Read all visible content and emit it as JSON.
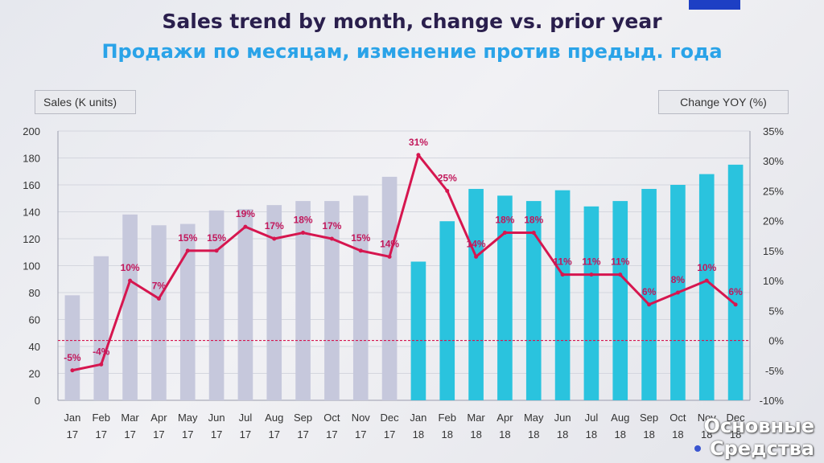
{
  "title_en": "Sales trend by month, change vs. prior year",
  "title_ru": "Продажи по месяцам, изменение против предыд. года",
  "left_axis_title": "Sales  (K units)",
  "right_axis_title": "Change YOY (%)",
  "watermark": {
    "line1": "Основные",
    "line2": "Средства"
  },
  "colors": {
    "bars_2017": "#c6c8dc",
    "bars_2018": "#2ac3de",
    "line": "#d6164f",
    "labels": "#c2185b",
    "axis_text": "#333333"
  },
  "chart_data": {
    "type": "bar",
    "categories": [
      "Jan 17",
      "Feb 17",
      "Mar 17",
      "Apr 17",
      "May 17",
      "Jun 17",
      "Jul 17",
      "Aug 17",
      "Sep 17",
      "Oct 17",
      "Nov 17",
      "Dec 17",
      "Jan 18",
      "Feb 18",
      "Mar 18",
      "Apr 18",
      "May 18",
      "Jun 18",
      "Jul 18",
      "Aug 18",
      "Sep 18",
      "Oct 18",
      "Nov 18",
      "Dec 18"
    ],
    "category_lines": [
      [
        "Jan",
        "17"
      ],
      [
        "Feb",
        "17"
      ],
      [
        "Mar",
        "17"
      ],
      [
        "Apr",
        "17"
      ],
      [
        "May",
        "17"
      ],
      [
        "Jun",
        "17"
      ],
      [
        "Jul",
        "17"
      ],
      [
        "Aug",
        "17"
      ],
      [
        "Sep",
        "17"
      ],
      [
        "Oct",
        "17"
      ],
      [
        "Nov",
        "17"
      ],
      [
        "Dec",
        "17"
      ],
      [
        "Jan",
        "18"
      ],
      [
        "Feb",
        "18"
      ],
      [
        "Mar",
        "18"
      ],
      [
        "Apr",
        "18"
      ],
      [
        "May",
        "18"
      ],
      [
        "Jun",
        "18"
      ],
      [
        "Jul",
        "18"
      ],
      [
        "Aug",
        "18"
      ],
      [
        "Sep",
        "18"
      ],
      [
        "Oct",
        "18"
      ],
      [
        "Nov",
        "18"
      ],
      [
        "Dec",
        "18"
      ]
    ],
    "series": [
      {
        "type": "bar",
        "axis": "left",
        "values": [
          78,
          107,
          138,
          130,
          131,
          141,
          142,
          145,
          148,
          148,
          152,
          166,
          103,
          133,
          157,
          152,
          148,
          156,
          144,
          148,
          157,
          160,
          168,
          175
        ]
      },
      {
        "type": "line",
        "axis": "right",
        "values": [
          -5,
          -4,
          10,
          7,
          15,
          15,
          19,
          17,
          18,
          17,
          15,
          14,
          31,
          25,
          14,
          18,
          18,
          11,
          11,
          11,
          6,
          8,
          10,
          6
        ],
        "labels": [
          "-5%",
          "-4%",
          "10%",
          "7%",
          "15%",
          "15%",
          "19%",
          "17%",
          "18%",
          "17%",
          "15%",
          "14%",
          "31%",
          "25%",
          "14%",
          "18%",
          "18%",
          "11%",
          "11%",
          "11%",
          "6%",
          "8%",
          "10%",
          "6%"
        ]
      }
    ],
    "y_left": {
      "min": 0,
      "max": 200,
      "ticks": [
        "0",
        "20",
        "40",
        "60",
        "80",
        "100",
        "120",
        "140",
        "160",
        "180",
        "200"
      ]
    },
    "y_right": {
      "min": -10,
      "max": 35,
      "ticks": [
        "-10%",
        "-5%",
        "0%",
        "5%",
        "10%",
        "15%",
        "20%",
        "25%",
        "30%",
        "35%"
      ]
    },
    "grid": true,
    "zero_reference_line": true,
    "legend": "none"
  }
}
